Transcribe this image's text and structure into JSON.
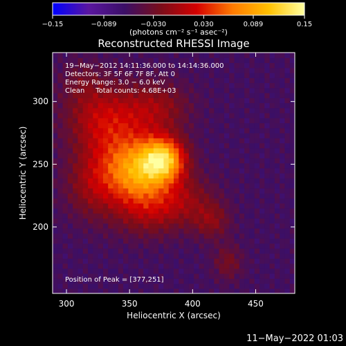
{
  "chart_data": {
    "type": "heatmap",
    "title": "Reconstructed RHESSI Image",
    "xlabel": "Heliocentric X (arcsec)",
    "ylabel": "Heliocentric Y (arcsec)",
    "xlim": [
      289,
      481
    ],
    "ylim": [
      147,
      339
    ],
    "x_ticks": [
      300,
      350,
      400,
      450
    ],
    "y_ticks": [
      200,
      250,
      300
    ],
    "colorbar": {
      "min": -0.15,
      "max": 0.15,
      "tick_values": [
        -0.15,
        -0.089,
        -0.03,
        0.03,
        0.089,
        0.15
      ],
      "tick_labels": [
        "−0.15",
        "−0.089",
        "−0.030",
        "0.030",
        "0.089",
        "0.15"
      ],
      "units": "(photons cm⁻² s⁻¹ asec⁻²)",
      "colors": [
        "#0000ff",
        "#5a16a0",
        "#3b0f66",
        "#7a0d1a",
        "#d40000",
        "#ff7a00",
        "#ffc000",
        "#ffffa0"
      ]
    },
    "annotations": [
      "19−May−2012 14:11:36.000 to 14:14:36.000",
      "Detectors: 3F 5F 6F 7F 8F, Att 0",
      "Energy Range: 3.0 − 6.0 keV",
      "Clean     Total counts: 4.68E+03"
    ],
    "peak_label": "Position of Peak = [377,251]",
    "peak": [
      377,
      251
    ],
    "sources": [
      {
        "x": 377,
        "y": 254,
        "peak": 0.15,
        "sigma_x": 12,
        "sigma_y": 12
      },
      {
        "x": 358,
        "y": 242,
        "peak": 0.085,
        "sigma_x": 16,
        "sigma_y": 16
      },
      {
        "x": 344,
        "y": 256,
        "peak": 0.075,
        "sigma_x": 22,
        "sigma_y": 26
      },
      {
        "x": 326,
        "y": 290,
        "peak": 0.05,
        "sigma_x": 20,
        "sigma_y": 18
      },
      {
        "x": 372,
        "y": 296,
        "peak": 0.045,
        "sigma_x": 18,
        "sigma_y": 14
      },
      {
        "x": 392,
        "y": 222,
        "peak": 0.045,
        "sigma_x": 18,
        "sigma_y": 14
      },
      {
        "x": 365,
        "y": 212,
        "peak": 0.04,
        "sigma_x": 18,
        "sigma_y": 14
      },
      {
        "x": 415,
        "y": 205,
        "peak": 0.04,
        "sigma_x": 10,
        "sigma_y": 10
      },
      {
        "x": 428,
        "y": 172,
        "peak": 0.035,
        "sigma_x": 8,
        "sigma_y": 10
      },
      {
        "x": 320,
        "y": 232,
        "peak": 0.035,
        "sigma_x": 15,
        "sigma_y": 18
      },
      {
        "x": 312,
        "y": 318,
        "peak": 0.02,
        "sigma_x": 12,
        "sigma_y": 12
      }
    ],
    "background": -0.06
  },
  "footer": {
    "timestamp": "11−May−2022 01:03"
  }
}
